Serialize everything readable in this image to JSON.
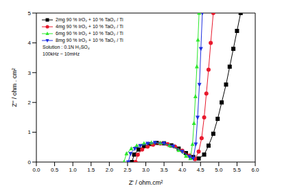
{
  "chart_data": {
    "type": "scatter",
    "x_label": "Z' / ohm.cm²",
    "y_label": "Z'' / ohm . cm²",
    "xlim": [
      0,
      6
    ],
    "xticks": [
      {
        "value": 0,
        "label": "0.0"
      },
      0.5,
      {
        "value": 1,
        "label": "1.0"
      },
      1.5,
      {
        "value": 2,
        "label": "2.0"
      },
      2.5,
      {
        "value": 3,
        "label": "3.0"
      },
      3.5,
      {
        "value": 4,
        "label": "4.0"
      },
      4.5,
      {
        "value": 5,
        "label": "5.0"
      },
      5.5,
      {
        "value": 6,
        "label": "6.0"
      }
    ],
    "ylim": [
      0,
      5
    ],
    "yticks": [
      0,
      1,
      2,
      3,
      4,
      5
    ],
    "legend": "upper left",
    "annotations": [
      "Solution : 0.1N H₂SO₄",
      "100kHz ~ 10mHz"
    ],
    "series": [
      {
        "name": "2mg 90 % IrO₂ + 10 % TaO₂ / Ti",
        "color": "#000000",
        "marker": "square",
        "x": [
          2.62,
          2.68,
          2.8,
          2.95,
          3.1,
          3.3,
          3.5,
          3.7,
          3.9,
          4.1,
          4.3,
          4.45,
          4.6,
          4.72,
          4.85,
          4.97,
          5.08,
          5.2,
          5.3,
          5.4,
          5.5,
          5.6
        ],
        "values": [
          0.0,
          0.25,
          0.42,
          0.53,
          0.6,
          0.64,
          0.63,
          0.56,
          0.45,
          0.3,
          0.17,
          0.12,
          0.25,
          0.55,
          0.95,
          1.45,
          2.0,
          2.6,
          3.2,
          3.8,
          4.4,
          5.0
        ]
      },
      {
        "name": "4mg 90 % IrO₂ + 10 % TaO₂ / Ti",
        "color": "#e8192c",
        "marker": "circle",
        "x": [
          2.72,
          2.78,
          2.9,
          3.05,
          3.2,
          3.4,
          3.6,
          3.8,
          4.0,
          4.2,
          4.35,
          4.45,
          4.53,
          4.6,
          4.66,
          4.72,
          4.78,
          4.85
        ],
        "values": [
          0.0,
          0.25,
          0.42,
          0.52,
          0.58,
          0.62,
          0.6,
          0.52,
          0.38,
          0.22,
          0.1,
          0.35,
          0.8,
          1.5,
          2.3,
          3.1,
          4.0,
          5.0
        ]
      },
      {
        "name": "6mg 90 % IrO₂ + 10 % TaO₂ / Ti",
        "color": "#2ee82e",
        "marker": "triangle",
        "x": [
          2.4,
          2.47,
          2.6,
          2.75,
          2.95,
          3.15,
          3.4,
          3.65,
          3.9,
          4.1,
          4.22,
          4.28,
          4.32,
          4.36,
          4.4,
          4.43,
          4.46
        ],
        "values": [
          0.0,
          0.28,
          0.45,
          0.55,
          0.62,
          0.65,
          0.64,
          0.56,
          0.4,
          0.2,
          0.12,
          0.6,
          1.3,
          2.2,
          3.2,
          4.1,
          5.0
        ]
      },
      {
        "name": "8mg 90 % IrO₂ + 10 % TaO₂ / Ti",
        "color": "#1f2fe0",
        "marker": "triangle-down",
        "x": [
          2.52,
          2.58,
          2.7,
          2.85,
          3.05,
          3.25,
          3.5,
          3.75,
          4.0,
          4.2,
          4.3,
          4.37,
          4.42,
          4.47,
          4.51,
          4.55
        ],
        "values": [
          0.0,
          0.28,
          0.45,
          0.55,
          0.62,
          0.65,
          0.63,
          0.53,
          0.35,
          0.18,
          0.12,
          0.6,
          1.5,
          2.6,
          3.8,
          5.0
        ]
      }
    ]
  }
}
